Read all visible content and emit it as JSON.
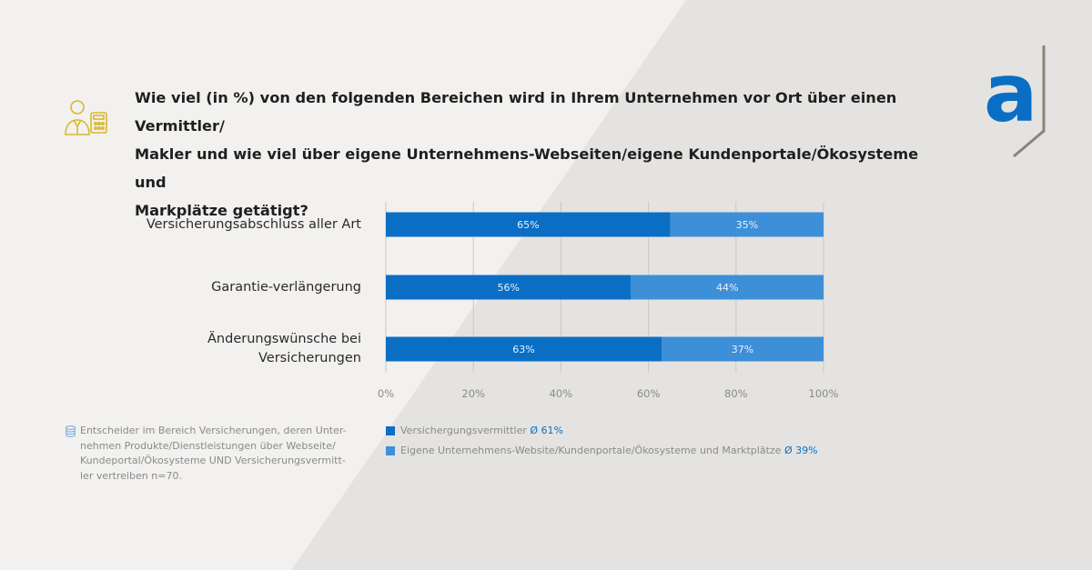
{
  "title": "Wie viel (in %) von den folgenden Bereichen wird in Ihrem Unternehmen vor Ort über einen Vermittler/\nMakler und wie viel über eigene Unternehmens-Webseiten/eigene Kundenportale/Ökosysteme und\nMarkplätze getätigt?",
  "logo": {
    "letter": "a"
  },
  "icons": {
    "header": "person-with-calculator-icon",
    "source": "database-icon"
  },
  "colors": {
    "series1": "#0a6fc4",
    "series2": "#3d8fd8",
    "gridline": "#c8c8c8",
    "axis_text": "#8a8a8a",
    "bar_label": "#e8f1fb",
    "icon_gold": "#d8b82a"
  },
  "source_note": "Entscheider im Bereich Versicherungen, deren Unter-\nnehmen Produkte/Dienstleistungen über Webseite/\nKundeportal/Ökosysteme UND Versicherungsvermitt-\nler vertreiben n=70.",
  "legend": [
    {
      "label": "Versichergungsvermittler",
      "avg": "Ø 61%"
    },
    {
      "label": "Eigene Unternehmens-Website/Kundenportale/Ökosysteme und Marktplätze",
      "avg": "Ø 39%"
    }
  ],
  "chart_data": {
    "type": "bar",
    "orientation": "horizontal",
    "stacked": true,
    "categories": [
      "Versicherungsabschluss aller Art",
      "Garantie-verlängerung",
      "Änderungswünsche bei\nVersicherungen"
    ],
    "series": [
      {
        "name": "Versichergungsvermittler",
        "values": [
          65,
          56,
          63
        ],
        "labels": [
          "65%",
          "56%",
          "63%"
        ]
      },
      {
        "name": "Eigene Unternehmens-Website/Kundenportale/Ökosysteme und Marktplätze",
        "values": [
          35,
          44,
          37
        ],
        "labels": [
          "35%",
          "44%",
          "37%"
        ]
      }
    ],
    "xlim": [
      0,
      100
    ],
    "ticks": [
      0,
      20,
      40,
      60,
      80,
      100
    ],
    "tick_labels": [
      "0%",
      "20%",
      "40%",
      "60%",
      "80%",
      "100%"
    ],
    "grid": true,
    "legend_position": "bottom"
  }
}
